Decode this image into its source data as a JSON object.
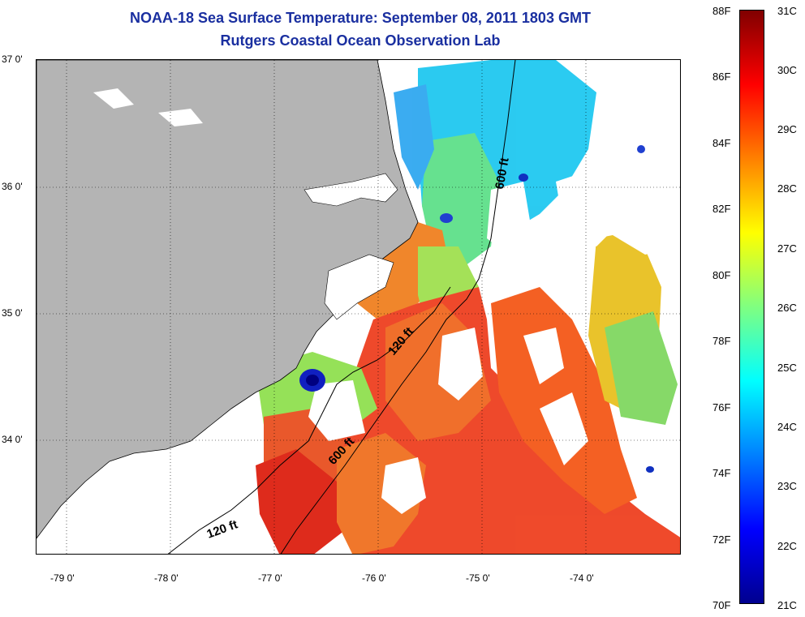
{
  "title": {
    "line1": "NOAA-18 Sea Surface Temperature:  September 08, 2011 1803 GMT",
    "line2": "Rutgers Coastal Ocean Observation Lab"
  },
  "map": {
    "latitude_labels": [
      "37 0'",
      "36 0'",
      "35 0'",
      "34 0'"
    ],
    "longitude_labels": [
      "-79 0'",
      "-78 0'",
      "-77 0'",
      "-76 0'",
      "-75 0'",
      "-74 0'"
    ],
    "depth_contour_labels": [
      "600 ft",
      "120 ft",
      "600 ft",
      "120 ft"
    ],
    "land_color": "#b4b4b4",
    "cloud_no_data_color": "#ffffff"
  },
  "colorbar": {
    "fahrenheit_labels": [
      "88F",
      "86F",
      "84F",
      "82F",
      "80F",
      "78F",
      "76F",
      "74F",
      "72F",
      "70F"
    ],
    "celsius_labels": [
      "31C",
      "30C",
      "29C",
      "28C",
      "27C",
      "26C",
      "25C",
      "24C",
      "23C",
      "22C",
      "21C"
    ],
    "min_color": "#00008f",
    "max_color": "#800000"
  }
}
